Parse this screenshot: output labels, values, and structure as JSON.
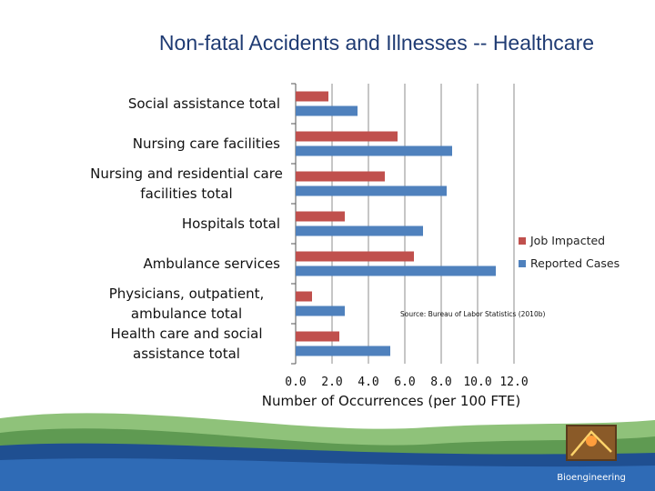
{
  "slide": {
    "title": "Non-fatal Accidents and Illnesses -- Healthcare",
    "footer_label": "Bioengineering"
  },
  "chart_data": {
    "type": "bar",
    "orientation": "horizontal",
    "title": "Non-fatal Accidents and Illnesses -- Healthcare",
    "xlabel": "Number of Occurrences (per 100 FTE)",
    "ylabel": "",
    "xlim": [
      0,
      12
    ],
    "grid": true,
    "categories": [
      [
        "Social assistance total"
      ],
      [
        "Nursing care facilities"
      ],
      [
        "Nursing and residential care",
        "facilities total"
      ],
      [
        "Hospitals total"
      ],
      [
        "Ambulance services"
      ],
      [
        "Physicians, outpatient,",
        "ambulance total"
      ],
      [
        "Health care and social",
        "assistance total"
      ]
    ],
    "series": [
      {
        "name": "Job Impacted",
        "color": "#c0504d",
        "values": [
          1.8,
          5.6,
          4.9,
          2.7,
          6.5,
          0.9,
          2.4
        ]
      },
      {
        "name": "Reported Cases",
        "color": "#4f81bd",
        "values": [
          3.4,
          8.6,
          8.3,
          7.0,
          11.0,
          2.7,
          5.2
        ]
      }
    ],
    "xticks": [
      "0.0",
      "2.0",
      "4.0",
      "6.0",
      "8.0",
      "10.0",
      "12.0"
    ],
    "annotation": "Source: Bureau of Labor Statistics (2010b)",
    "legend_position": "right"
  }
}
